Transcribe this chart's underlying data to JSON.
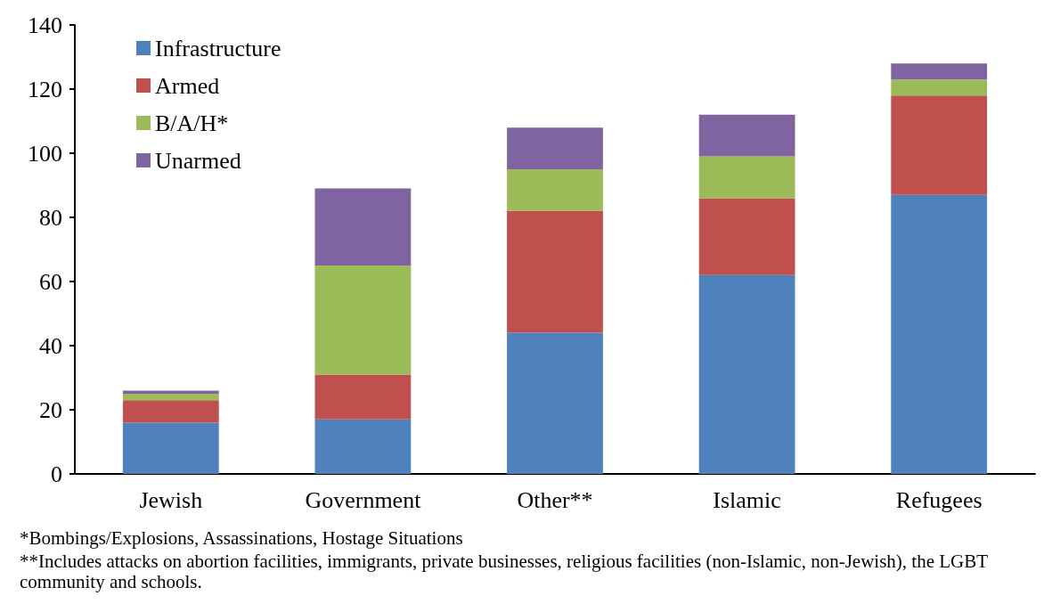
{
  "chart_data": {
    "type": "bar",
    "stacked": true,
    "categories": [
      "Jewish",
      "Government",
      "Other**",
      "Islamic",
      "Refugees"
    ],
    "series": [
      {
        "name": "Infrastructure",
        "color": "#4f81bd",
        "values": [
          16,
          17,
          44,
          62,
          87
        ]
      },
      {
        "name": "Armed",
        "color": "#c0504d",
        "values": [
          7,
          14,
          38,
          24,
          31
        ]
      },
      {
        "name": "B/A/H*",
        "color": "#9bbb59",
        "values": [
          2,
          34,
          13,
          13,
          5
        ]
      },
      {
        "name": "Unarmed",
        "color": "#8064a2",
        "values": [
          1,
          24,
          13,
          13,
          5
        ]
      }
    ],
    "ylim": [
      0,
      140
    ],
    "yticks": [
      0,
      20,
      40,
      60,
      80,
      100,
      120,
      140
    ],
    "grid": false,
    "legend": "top left",
    "annotations": [
      "*Bombings/Explosions, Assassinations, Hostage Situations",
      "**Includes attacks on abortion facilities, immigrants, private businesses, religious facilities (non-Islamic, non-Jewish), the LGBT community and schools."
    ]
  }
}
